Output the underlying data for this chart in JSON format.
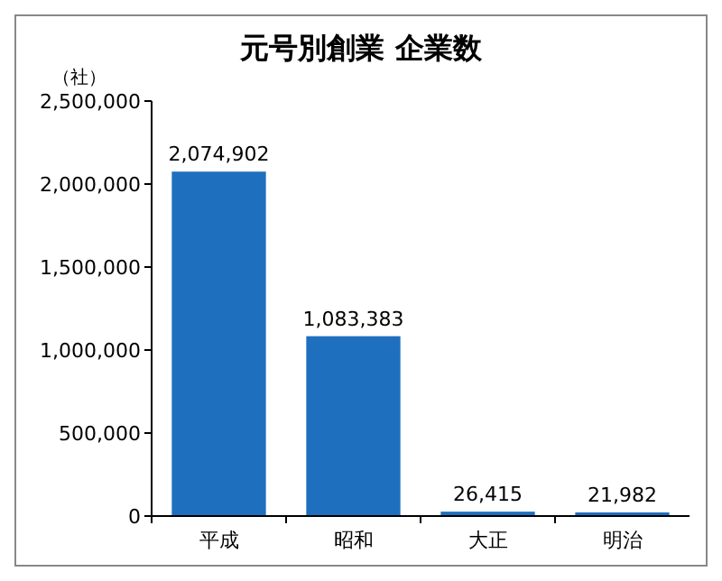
{
  "chart_data": {
    "type": "bar",
    "title": "元号別創業 企業数",
    "ylabel": "（社）",
    "categories": [
      "平成",
      "昭和",
      "大正",
      "明治"
    ],
    "values": [
      2074902,
      1083383,
      26415,
      21982
    ],
    "value_labels": [
      "2,074,902",
      "1,083,383",
      "26,415",
      "21,982"
    ],
    "color": "#1f6fbf",
    "ylim": [
      0,
      2500000
    ],
    "yticks": [
      0,
      {
        "value": 500000,
        "label": "500,000"
      },
      {
        "value": 1000000,
        "label": "1,000,000"
      },
      {
        "value": 1500000,
        "label": "1,500,000"
      },
      {
        "value": 2000000,
        "label": "2,000,000"
      },
      {
        "value": 2500000,
        "label": "2,500,000"
      }
    ],
    "grid": false
  }
}
